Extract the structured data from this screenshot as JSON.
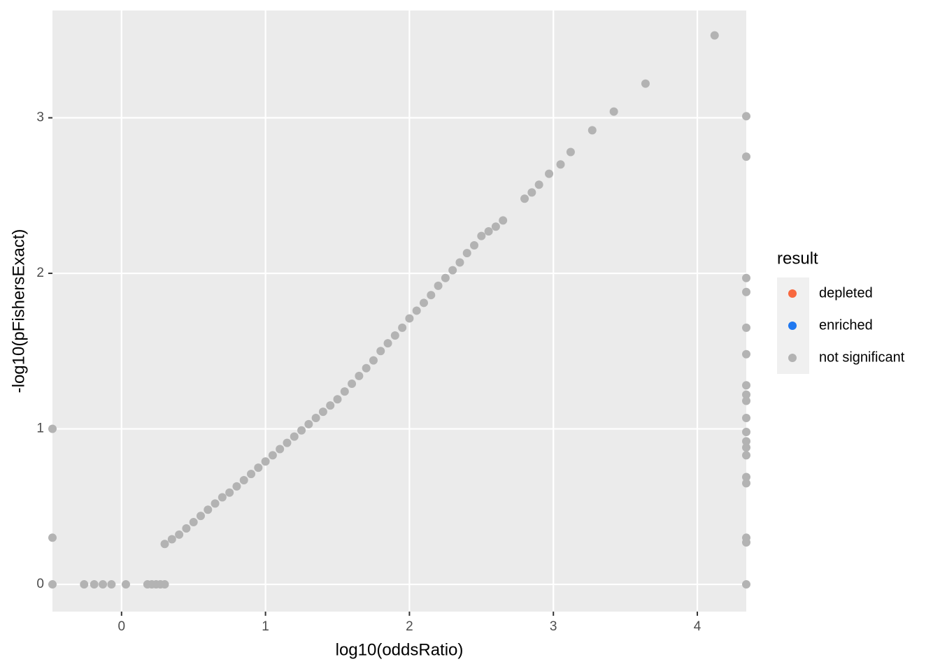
{
  "chart_data": {
    "type": "scatter",
    "x_label": "log10(oddsRatio)",
    "y_label": "-log10(pFishersExact)",
    "legend_title": "result",
    "xlim": [
      -0.48,
      4.34
    ],
    "ylim": [
      -0.175,
      3.69
    ],
    "xticks": [
      0,
      1,
      2,
      3,
      4
    ],
    "yticks": [
      0,
      1,
      2,
      3
    ],
    "grid": true,
    "legend": "right",
    "series": [
      {
        "name": "depleted",
        "color": "#f8683f",
        "x": [],
        "values": []
      },
      {
        "name": "enriched",
        "color": "#1f78f0",
        "x": [],
        "values": []
      },
      {
        "name": "not significant",
        "color": "#b3b3b3",
        "x": [
          -0.48,
          -0.48,
          -0.48,
          -0.26,
          -0.19,
          -0.13,
          -0.07,
          0.03,
          0.18,
          0.21,
          0.24,
          0.27,
          0.3,
          0.3,
          0.35,
          0.4,
          0.45,
          0.5,
          0.55,
          0.6,
          0.65,
          0.7,
          0.75,
          0.8,
          0.85,
          0.9,
          0.95,
          1.0,
          1.05,
          1.1,
          1.15,
          1.2,
          1.25,
          1.3,
          1.35,
          1.4,
          1.45,
          1.5,
          1.55,
          1.6,
          1.65,
          1.7,
          1.75,
          1.8,
          1.85,
          1.9,
          1.95,
          2.0,
          2.05,
          2.1,
          2.15,
          2.2,
          2.25,
          2.3,
          2.35,
          2.4,
          2.45,
          2.5,
          2.55,
          2.6,
          2.65,
          2.8,
          2.85,
          2.9,
          2.97,
          3.05,
          3.12,
          3.27,
          3.42,
          3.64,
          4.12,
          4.34,
          4.34,
          4.34,
          4.34,
          4.34,
          4.34,
          4.34,
          4.34,
          4.34,
          4.34,
          4.34,
          4.34,
          4.34,
          4.34,
          4.34,
          4.34,
          4.34,
          4.34,
          4.34
        ],
        "values": [
          1.0,
          0.3,
          0,
          0,
          0,
          0,
          0,
          0,
          0,
          0,
          0,
          0,
          0,
          0.26,
          0.29,
          0.32,
          0.36,
          0.4,
          0.44,
          0.48,
          0.52,
          0.56,
          0.59,
          0.63,
          0.67,
          0.71,
          0.75,
          0.79,
          0.83,
          0.87,
          0.91,
          0.95,
          0.99,
          1.03,
          1.07,
          1.11,
          1.15,
          1.19,
          1.24,
          1.29,
          1.34,
          1.39,
          1.44,
          1.5,
          1.55,
          1.6,
          1.65,
          1.71,
          1.76,
          1.81,
          1.86,
          1.92,
          1.97,
          2.02,
          2.07,
          2.13,
          2.18,
          2.24,
          2.27,
          2.3,
          2.34,
          2.48,
          2.52,
          2.57,
          2.64,
          2.7,
          2.78,
          2.92,
          3.04,
          3.22,
          3.53,
          3.01,
          2.75,
          1.97,
          1.88,
          1.65,
          1.48,
          1.28,
          1.22,
          1.18,
          1.07,
          0.98,
          0.92,
          0.88,
          0.83,
          0.69,
          0.65,
          0.3,
          0.27,
          0
        ]
      }
    ]
  }
}
